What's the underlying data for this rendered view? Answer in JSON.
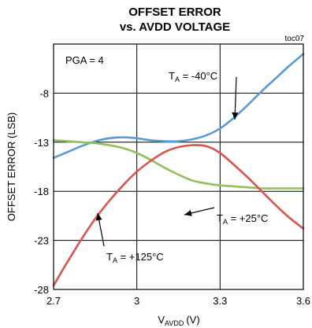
{
  "chart_data": {
    "type": "line",
    "title": "OFFSET ERROR",
    "subtitle": "vs. AVDD VOLTAGE",
    "tag": "toc07",
    "xlabel_main": "V",
    "xlabel_sub": "AVDD",
    "xlabel_unit": "(V)",
    "ylabel": "OFFSET ERROR (LSB)",
    "xlim": [
      2.7,
      3.6
    ],
    "ylim": [
      -28,
      -3
    ],
    "xticks": [
      2.7,
      3.0,
      3.3,
      3.6
    ],
    "xtick_labels": [
      "2.7",
      "3",
      "3.3",
      "3.6"
    ],
    "yticks": [
      -28,
      -23,
      -18,
      -13,
      -8
    ],
    "ytick_labels": [
      "-28",
      "-23",
      "-18",
      "-13",
      "-8"
    ],
    "grid": true,
    "annotation": "PGA = 4",
    "series": [
      {
        "name": "T_A = -40°C",
        "label_main": "T",
        "label_sub": "A",
        "label_rest": " = -40°C",
        "color": "#5b9bd5",
        "x": [
          2.7,
          2.75,
          2.8,
          2.85,
          2.9,
          2.95,
          3.0,
          3.05,
          3.1,
          3.15,
          3.2,
          3.25,
          3.3,
          3.35,
          3.4,
          3.45,
          3.5,
          3.55,
          3.6
        ],
        "y": [
          -14.6,
          -14.0,
          -13.4,
          -12.9,
          -12.6,
          -12.5,
          -12.6,
          -12.8,
          -12.9,
          -12.9,
          -12.7,
          -12.3,
          -11.6,
          -10.5,
          -9.2,
          -7.8,
          -6.5,
          -5.2,
          -4.0
        ]
      },
      {
        "name": "T_A = +25°C",
        "label_main": "T",
        "label_sub": "A",
        "label_rest": " = +25°C",
        "color": "#92bf5a",
        "x": [
          2.7,
          2.75,
          2.8,
          2.85,
          2.9,
          2.95,
          3.0,
          3.05,
          3.1,
          3.15,
          3.2,
          3.25,
          3.3,
          3.35,
          3.4,
          3.45,
          3.5,
          3.55,
          3.6
        ],
        "y": [
          -12.8,
          -12.9,
          -13.0,
          -13.1,
          -13.3,
          -13.6,
          -14.1,
          -14.8,
          -15.6,
          -16.3,
          -16.9,
          -17.2,
          -17.4,
          -17.5,
          -17.6,
          -17.7,
          -17.7,
          -17.7,
          -17.7
        ]
      },
      {
        "name": "T_A = +125°C",
        "label_main": "T",
        "label_sub": "A",
        "label_rest": " = +125°C",
        "color": "#d9534f",
        "x": [
          2.7,
          2.75,
          2.8,
          2.85,
          2.9,
          2.95,
          3.0,
          3.05,
          3.1,
          3.15,
          3.2,
          3.25,
          3.3,
          3.35,
          3.4,
          3.45,
          3.5,
          3.55,
          3.6
        ],
        "y": [
          -27.6,
          -25.2,
          -22.9,
          -20.8,
          -19.0,
          -17.4,
          -16.0,
          -14.9,
          -14.0,
          -13.5,
          -13.3,
          -13.4,
          -14.1,
          -15.3,
          -16.6,
          -18.0,
          -19.4,
          -20.7,
          -21.8
        ]
      }
    ]
  }
}
